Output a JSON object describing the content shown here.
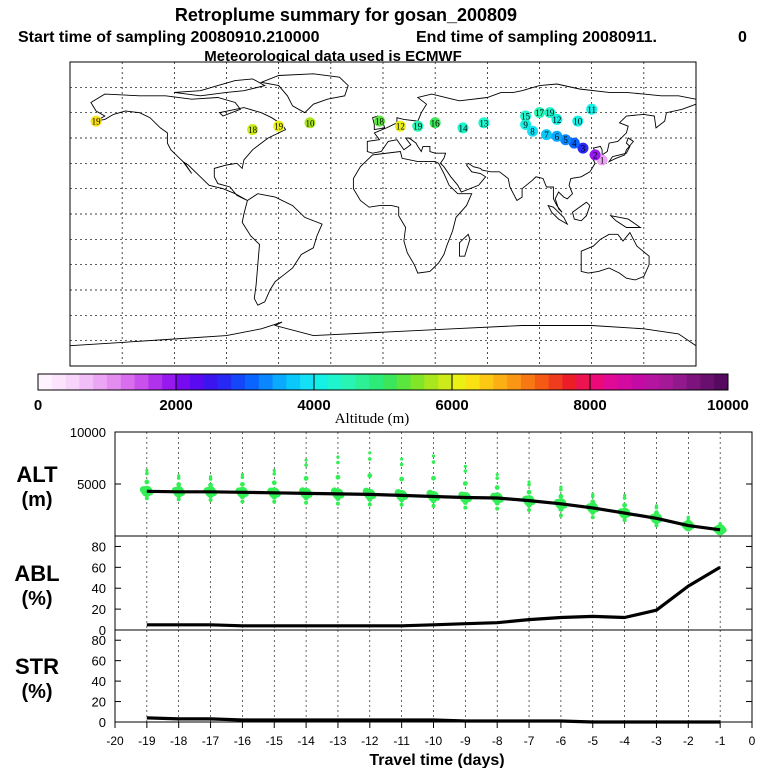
{
  "header": {
    "title": "Retroplume summary for gosan_200809",
    "subtitle_start": "Start time of sampling 20080910.210000",
    "subtitle_end": "End time of sampling 20080911.",
    "subtitle_tail": "0",
    "met_line": "Meteorological data used is ECMWF"
  },
  "colorbar": {
    "label": "Altitude (m)",
    "ticks": [
      "0",
      "2000",
      "4000",
      "6000",
      "8000",
      "10000"
    ],
    "range": [
      0,
      10000
    ]
  },
  "map_points": [
    {
      "label": "1",
      "lon": 126,
      "lat": 32,
      "alt": 800
    },
    {
      "label": "2",
      "lon": 122,
      "lat": 35,
      "alt": 1800
    },
    {
      "label": "3",
      "lon": 115,
      "lat": 39,
      "alt": 2600
    },
    {
      "label": "4",
      "lon": 110,
      "lat": 42,
      "alt": 3100
    },
    {
      "label": "5",
      "lon": 105,
      "lat": 44,
      "alt": 3300
    },
    {
      "label": "6",
      "lon": 100,
      "lat": 46,
      "alt": 3500
    },
    {
      "label": "7",
      "lon": 94,
      "lat": 47,
      "alt": 3700
    },
    {
      "label": "8",
      "lon": 86,
      "lat": 49,
      "alt": 3900
    },
    {
      "label": "9",
      "lon": 82,
      "lat": 53,
      "alt": 4000
    },
    {
      "label": "10",
      "lon": 112,
      "lat": 55,
      "alt": 4000
    },
    {
      "label": "11",
      "lon": 120,
      "lat": 62,
      "alt": 4100
    },
    {
      "label": "12",
      "lon": 100,
      "lat": 56,
      "alt": 4100
    },
    {
      "label": "13",
      "lon": 58,
      "lat": 54,
      "alt": 4200
    },
    {
      "label": "14",
      "lon": 46,
      "lat": 51,
      "alt": 4300
    },
    {
      "label": "15",
      "lon": 82,
      "lat": 58,
      "alt": 4300
    },
    {
      "label": "16",
      "lon": 30,
      "lat": 54,
      "alt": 5000
    },
    {
      "label": "17",
      "lon": 90,
      "lat": 60,
      "alt": 4400
    },
    {
      "label": "18",
      "lon": -2,
      "lat": 55,
      "alt": 5200
    },
    {
      "label": "19",
      "lon": 20,
      "lat": 52,
      "alt": 4400
    },
    {
      "label": "19",
      "lon": 96,
      "lat": 60,
      "alt": 4200
    },
    {
      "label": "10",
      "lon": -42,
      "lat": 54,
      "alt": 5700
    },
    {
      "label": "19",
      "lon": -60,
      "lat": 52,
      "alt": 6000
    },
    {
      "label": "18",
      "lon": -75,
      "lat": 50,
      "alt": 5800
    },
    {
      "label": "12",
      "lon": 10,
      "lat": 52,
      "alt": 6100
    },
    {
      "label": "19",
      "lon": -165,
      "lat": 55,
      "alt": 6200
    }
  ],
  "chart_data": [
    {
      "id": "alt",
      "type": "line",
      "panel_label_1": "ALT",
      "panel_label_2": "(m)",
      "ylim": [
        0,
        10000
      ],
      "yticks": [
        "5000",
        "10000"
      ],
      "x": [
        -19,
        -18,
        -17,
        -16,
        -15,
        -14,
        -13,
        -12,
        -11,
        -10,
        -9,
        -8,
        -7,
        -6,
        -5,
        -4,
        -3,
        -2,
        -1
      ],
      "values": [
        4300,
        4250,
        4250,
        4200,
        4150,
        4100,
        4050,
        4000,
        3900,
        3800,
        3700,
        3650,
        3400,
        3100,
        2700,
        2200,
        1700,
        1000,
        600
      ],
      "spread_min": [
        3400,
        3300,
        3200,
        3000,
        3000,
        2900,
        2800,
        2700,
        2700,
        2600,
        2400,
        2300,
        2200,
        1600,
        1500,
        1300,
        800,
        500,
        300
      ],
      "spread_max": [
        6300,
        5800,
        5700,
        5900,
        6300,
        7300,
        7600,
        8000,
        7400,
        7700,
        6700,
        5900,
        5200,
        4700,
        4000,
        3900,
        2900,
        1800,
        1200
      ]
    },
    {
      "id": "abl",
      "type": "line",
      "panel_label_1": "ABL",
      "panel_label_2": "(%)",
      "ylim": [
        0,
        90
      ],
      "yticks": [
        "0",
        "20",
        "40",
        "60",
        "80"
      ],
      "x": [
        -19,
        -18,
        -17,
        -16,
        -15,
        -14,
        -13,
        -12,
        -11,
        -10,
        -9,
        -8,
        -7,
        -6,
        -5,
        -4,
        -3,
        -2,
        -1
      ],
      "values": [
        5,
        5,
        5,
        4,
        4,
        4,
        4,
        4,
        4,
        5,
        6,
        7,
        10,
        12,
        13,
        12,
        19,
        42,
        60
      ]
    },
    {
      "id": "str",
      "type": "line",
      "panel_label_1": "STR",
      "panel_label_2": "(%)",
      "ylim": [
        0,
        90
      ],
      "yticks": [
        "0",
        "20",
        "40",
        "60",
        "80"
      ],
      "x": [
        -19,
        -18,
        -17,
        -16,
        -15,
        -14,
        -13,
        -12,
        -11,
        -10,
        -9,
        -8,
        -7,
        -6,
        -5,
        -4,
        -3,
        -2,
        -1
      ],
      "values": [
        4,
        3,
        3,
        2,
        2,
        2,
        2,
        2,
        2,
        2,
        1,
        1,
        1,
        1,
        0,
        0,
        0,
        0,
        0
      ]
    }
  ],
  "xaxis": {
    "label": "Travel time (days)",
    "xlim": [
      -20,
      0
    ],
    "ticks": [
      "-20",
      "-19",
      "-18",
      "-17",
      "-16",
      "-15",
      "-14",
      "-13",
      "-12",
      "-11",
      "-10",
      "-9",
      "-8",
      "-7",
      "-6",
      "-5",
      "-4",
      "-3",
      "-2",
      "-1",
      "0"
    ]
  }
}
